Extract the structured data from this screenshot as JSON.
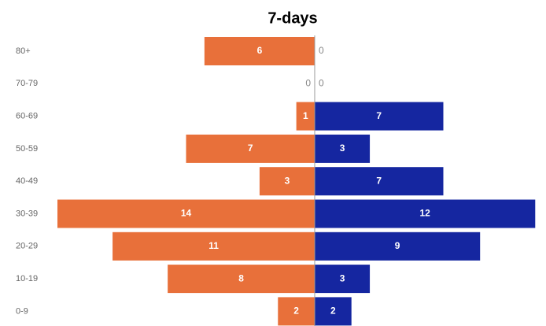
{
  "chart_data": {
    "type": "pyramid",
    "title": "7-days",
    "categories": [
      "80+",
      "70-79",
      "60-69",
      "50-59",
      "40-49",
      "30-39",
      "20-29",
      "10-19",
      "0-9"
    ],
    "series": [
      {
        "side": "left",
        "color": "#e8703a",
        "values": [
          6,
          0,
          1,
          7,
          3,
          14,
          11,
          8,
          2
        ]
      },
      {
        "side": "right",
        "color": "#1526a0",
        "values": [
          0,
          0,
          7,
          3,
          7,
          12,
          9,
          3,
          2
        ]
      }
    ]
  }
}
